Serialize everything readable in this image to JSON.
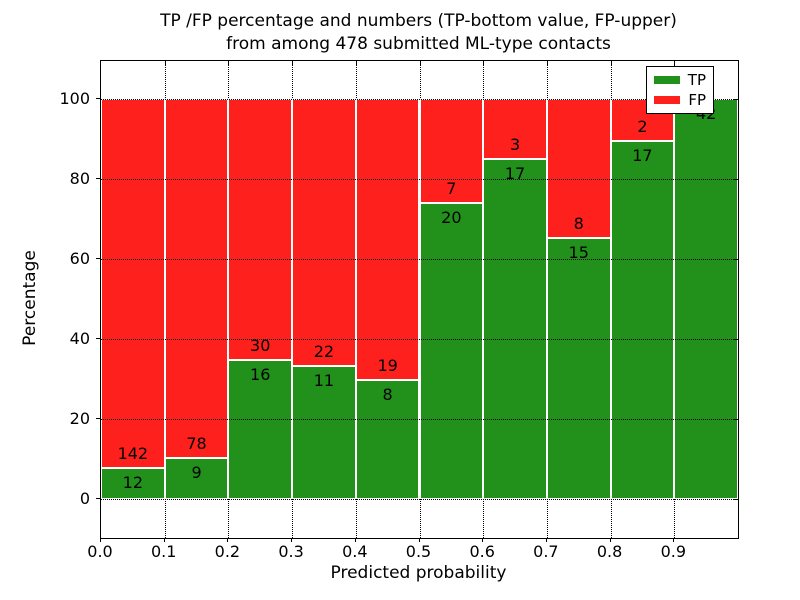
{
  "chart_data": {
    "type": "bar",
    "stacked": true,
    "title_lines": [
      "TP /FP percentage and numbers (TP-bottom value, FP-upper)",
      "from among 478 submitted ML-type contacts"
    ],
    "xlabel": "Predicted probability",
    "ylabel": "Percentage",
    "total_contacts": 478,
    "bin_width": 0.1,
    "bin_starts": [
      0.0,
      0.1,
      0.2,
      0.3,
      0.4,
      0.5,
      0.6,
      0.7,
      0.8,
      0.9
    ],
    "series": [
      {
        "name": "TP",
        "color": "#22911c",
        "counts": [
          12,
          9,
          16,
          11,
          8,
          20,
          17,
          15,
          17,
          42
        ]
      },
      {
        "name": "FP",
        "color": "#fd201c",
        "counts": [
          142,
          78,
          30,
          22,
          19,
          7,
          3,
          8,
          2,
          0
        ]
      }
    ],
    "tp_percent": [
      7.79,
      10.34,
      34.78,
      33.33,
      29.63,
      74.07,
      85.0,
      65.22,
      89.47,
      100.0
    ],
    "xticks": [
      {
        "label": "0.0",
        "value": 0.0
      },
      {
        "label": "0.1",
        "value": 0.1
      },
      {
        "label": "0.2",
        "value": 0.2
      },
      {
        "label": "0.3",
        "value": 0.3
      },
      {
        "label": "0.4",
        "value": 0.4
      },
      {
        "label": "0.5",
        "value": 0.5
      },
      {
        "label": "0.6",
        "value": 0.6
      },
      {
        "label": "0.7",
        "value": 0.7
      },
      {
        "label": "0.8",
        "value": 0.8
      },
      {
        "label": "0.9",
        "value": 0.9
      }
    ],
    "yticks": [
      {
        "label": "0",
        "value": 0
      },
      {
        "label": "20",
        "value": 20
      },
      {
        "label": "40",
        "value": 40
      },
      {
        "label": "60",
        "value": 60
      },
      {
        "label": "80",
        "value": 80
      },
      {
        "label": "100",
        "value": 100
      }
    ],
    "xlim": [
      0.0,
      1.0
    ],
    "ylim": [
      -9.75,
      109.5
    ],
    "grid": "dotted-black",
    "legend": {
      "position": "upper-right",
      "entries": [
        {
          "label": "TP",
          "color": "#22911c"
        },
        {
          "label": "FP",
          "color": "#fd201c"
        }
      ]
    }
  }
}
